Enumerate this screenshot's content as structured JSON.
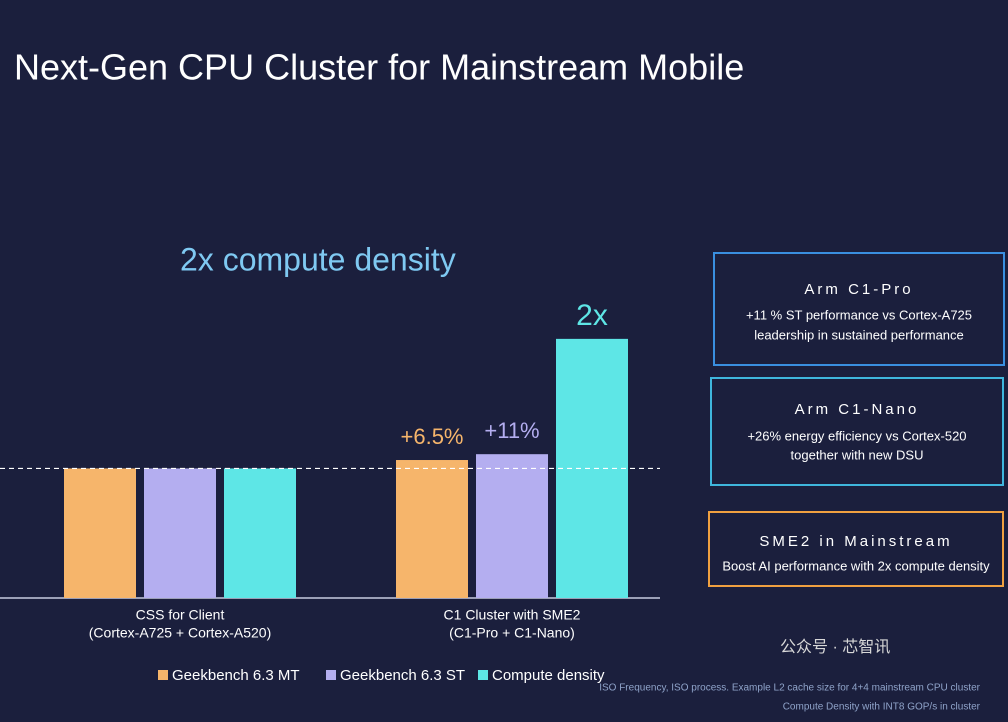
{
  "title": "Next-Gen CPU Cluster for Mainstream Mobile",
  "chart_data": {
    "type": "bar",
    "subtitle": "2x compute density",
    "categories": [
      "CSS for Client",
      "C1 Cluster with SME2"
    ],
    "category_details": [
      "(Cortex-A725 + Cortex-A520)",
      "(C1-Pro + C1-Nano)"
    ],
    "series": [
      {
        "name": "Geekbench 6.3 MT",
        "color": "#f6b56b",
        "values": [
          1,
          1.065
        ]
      },
      {
        "name": "Geekbench 6.3 ST",
        "color": "#b4aef0",
        "values": [
          1,
          1.11
        ]
      },
      {
        "name": "Compute density",
        "color": "#5ee6e6",
        "values": [
          1,
          2
        ]
      }
    ],
    "annotations": [
      "+6.5%",
      "+11%",
      "2x"
    ],
    "reference_line": 1,
    "ylim": [
      0,
      2.3
    ]
  },
  "panels": [
    {
      "title": "Arm C1-Pro",
      "lines": [
        "+11 % ST performance vs Cortex-A725",
        "leadership in sustained performance"
      ]
    },
    {
      "title": "Arm C1-Nano",
      "lines": [
        "+26% energy efficiency vs Cortex-520",
        "together with new DSU"
      ]
    },
    {
      "title": "SME2 in Mainstream",
      "lines": [
        "Boost AI performance with 2x compute density"
      ]
    }
  ],
  "footnotes": [
    "ISO Frequency, ISO process. Example L2 cache size for 4+4 mainstream CPU cluster",
    "Compute Density with INT8 GOP/s in cluster"
  ],
  "watermark": "公众号 · 芯智讯"
}
